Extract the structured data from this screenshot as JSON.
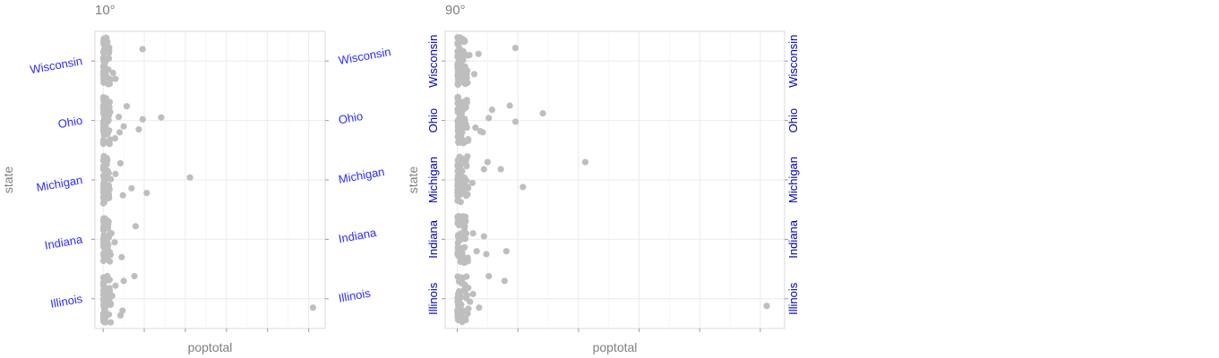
{
  "chart_data": [
    {
      "type": "scatter",
      "title": "10°",
      "xlabel": "poptotal",
      "ylabel": "state",
      "y_tick_angle": 10,
      "y_tick_color": "#2b2bff",
      "point_color": "#bebebe",
      "xlim": [
        -200000,
        5400000
      ],
      "categories": [
        "Illinois",
        "Indiana",
        "Michigan",
        "Ohio",
        "Wisconsin"
      ],
      "points": [
        {
          "state": "Illinois",
          "x": 5105067,
          "jitter": -0.15
        },
        {
          "state": "Illinois",
          "x": 760000,
          "jitter": 0.38
        },
        {
          "state": "Illinois",
          "x": 500000,
          "jitter": 0.3
        },
        {
          "state": "Illinois",
          "x": 470000,
          "jitter": -0.2
        },
        {
          "state": "Illinois",
          "x": 420000,
          "jitter": -0.28
        },
        {
          "state": "Illinois",
          "x": 300000,
          "jitter": 0.22
        },
        {
          "state": "Illinois",
          "x": 220000,
          "jitter": 0.05
        },
        {
          "state": "Illinois",
          "x": 180000,
          "jitter": -0.1
        },
        {
          "state": "Illinois",
          "x": 150000,
          "jitter": 0.18
        },
        {
          "state": "Illinois",
          "x": 120000,
          "jitter": -0.05
        },
        {
          "state": "Indiana",
          "x": 790000,
          "jitter": 0.22
        },
        {
          "state": "Indiana",
          "x": 450000,
          "jitter": -0.3
        },
        {
          "state": "Indiana",
          "x": 280000,
          "jitter": -0.05
        },
        {
          "state": "Indiana",
          "x": 200000,
          "jitter": 0.1
        },
        {
          "state": "Michigan",
          "x": 2111687,
          "jitter": 0.04
        },
        {
          "state": "Michigan",
          "x": 1060000,
          "jitter": -0.22
        },
        {
          "state": "Michigan",
          "x": 690000,
          "jitter": -0.14
        },
        {
          "state": "Michigan",
          "x": 420000,
          "jitter": 0.28
        },
        {
          "state": "Michigan",
          "x": 480000,
          "jitter": -0.26
        },
        {
          "state": "Michigan",
          "x": 300000,
          "jitter": 0.1
        },
        {
          "state": "Ohio",
          "x": 1412140,
          "jitter": 0.05
        },
        {
          "state": "Ohio",
          "x": 961437,
          "jitter": 0.02
        },
        {
          "state": "Ohio",
          "x": 866228,
          "jitter": -0.15
        },
        {
          "state": "Ohio",
          "x": 573809,
          "jitter": 0.24
        },
        {
          "state": "Ohio",
          "x": 500000,
          "jitter": -0.1
        },
        {
          "state": "Ohio",
          "x": 400000,
          "jitter": -0.2
        },
        {
          "state": "Ohio",
          "x": 380000,
          "jitter": 0.06
        },
        {
          "state": "Ohio",
          "x": 290000,
          "jitter": -0.3
        },
        {
          "state": "Wisconsin",
          "x": 959275,
          "jitter": 0.2
        },
        {
          "state": "Wisconsin",
          "x": 300000,
          "jitter": -0.3
        },
        {
          "state": "Wisconsin",
          "x": 240000,
          "jitter": -0.2
        }
      ]
    },
    {
      "type": "scatter",
      "title": "90°",
      "xlabel": "poptotal",
      "ylabel": "state",
      "y_tick_angle": 90,
      "y_tick_color": "#0000b3",
      "point_color": "#bebebe",
      "xlim": [
        -200000,
        5400000
      ],
      "categories": [
        "Illinois",
        "Indiana",
        "Michigan",
        "Ohio",
        "Wisconsin"
      ],
      "points": [
        {
          "state": "Illinois",
          "x": 5105067,
          "jitter": -0.12
        },
        {
          "state": "Illinois",
          "x": 780000,
          "jitter": 0.3
        },
        {
          "state": "Illinois",
          "x": 520000,
          "jitter": 0.38
        },
        {
          "state": "Illinois",
          "x": 360000,
          "jitter": -0.15
        },
        {
          "state": "Illinois",
          "x": 260000,
          "jitter": 0.08
        },
        {
          "state": "Illinois",
          "x": 210000,
          "jitter": -0.05
        },
        {
          "state": "Illinois",
          "x": 150000,
          "jitter": 0.18
        },
        {
          "state": "Indiana",
          "x": 810000,
          "jitter": -0.2
        },
        {
          "state": "Indiana",
          "x": 480000,
          "jitter": -0.25
        },
        {
          "state": "Indiana",
          "x": 440000,
          "jitter": 0.05
        },
        {
          "state": "Indiana",
          "x": 320000,
          "jitter": -0.2
        },
        {
          "state": "Indiana",
          "x": 260000,
          "jitter": 0.1
        },
        {
          "state": "Michigan",
          "x": 2111687,
          "jitter": 0.3
        },
        {
          "state": "Michigan",
          "x": 1083592,
          "jitter": -0.12
        },
        {
          "state": "Michigan",
          "x": 717400,
          "jitter": 0.18
        },
        {
          "state": "Michigan",
          "x": 500000,
          "jitter": 0.3
        },
        {
          "state": "Michigan",
          "x": 440000,
          "jitter": 0.18
        },
        {
          "state": "Michigan",
          "x": 250000,
          "jitter": -0.05
        },
        {
          "state": "Ohio",
          "x": 1412140,
          "jitter": 0.12
        },
        {
          "state": "Ohio",
          "x": 961437,
          "jitter": -0.02
        },
        {
          "state": "Ohio",
          "x": 866228,
          "jitter": 0.25
        },
        {
          "state": "Ohio",
          "x": 573809,
          "jitter": 0.18
        },
        {
          "state": "Ohio",
          "x": 520000,
          "jitter": 0.04
        },
        {
          "state": "Ohio",
          "x": 420000,
          "jitter": -0.2
        },
        {
          "state": "Ohio",
          "x": 380000,
          "jitter": -0.18
        },
        {
          "state": "Ohio",
          "x": 300000,
          "jitter": -0.12
        },
        {
          "state": "Wisconsin",
          "x": 959275,
          "jitter": 0.22
        },
        {
          "state": "Wisconsin",
          "x": 350000,
          "jitter": 0.12
        },
        {
          "state": "Wisconsin",
          "x": 280000,
          "jitter": -0.22
        },
        {
          "state": "Wisconsin",
          "x": 200000,
          "jitter": 0.1
        }
      ]
    }
  ]
}
